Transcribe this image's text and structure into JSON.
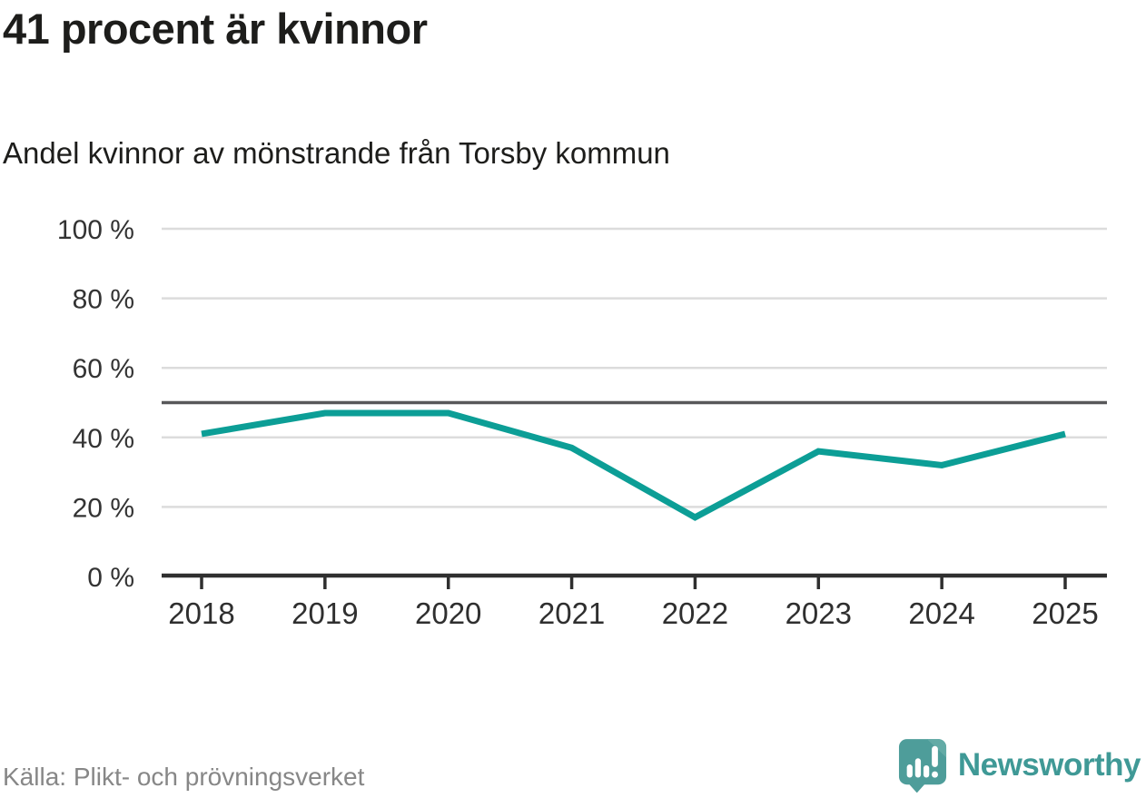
{
  "header": {
    "title": "41 procent är kvinnor",
    "subtitle": "Andel kvinnor av mönstrande från Torsby kommun"
  },
  "footer": {
    "source": "Källa: Plikt- och prövningsverket",
    "brand": "Newsworthy"
  },
  "colors": {
    "line": "#0c9e96",
    "grid": "#dcdcdc",
    "reference_line": "#58585a",
    "axis": "#2f2f2f",
    "tick_label": "#333333",
    "title_text": "#1d1d1b",
    "source_text": "#878787",
    "brand_teal": "#3f9996",
    "logo_bubble": "#4e9d9a",
    "logo_fold": "#63aba6"
  },
  "chart_data": {
    "type": "line",
    "categories": [
      "2018",
      "2019",
      "2020",
      "2021",
      "2022",
      "2023",
      "2024",
      "2025"
    ],
    "values": [
      41,
      47,
      47,
      37,
      17,
      36,
      32,
      41
    ],
    "title": "41 procent är kvinnor",
    "subtitle": "Andel kvinnor av mönstrande från Torsby kommun",
    "xlabel": "",
    "ylabel": "",
    "ylim": [
      0,
      100
    ],
    "yticks": [
      0,
      20,
      40,
      60,
      80,
      100
    ],
    "ytick_format": "{v} %",
    "reference_line": 50,
    "grid": true,
    "legend": false,
    "line_width": 7
  }
}
